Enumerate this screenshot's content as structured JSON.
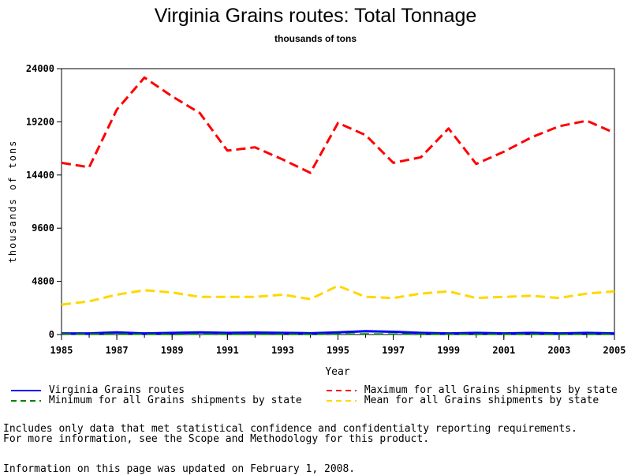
{
  "chart_data": {
    "type": "line",
    "title": "Virginia Grains routes: Total Tonnage",
    "subtitle": "thousands of tons",
    "xlabel": "Year",
    "ylabel": "thousands of tons",
    "x": [
      1985,
      1986,
      1987,
      1988,
      1989,
      1990,
      1991,
      1992,
      1993,
      1994,
      1995,
      1996,
      1997,
      1998,
      1999,
      2000,
      2001,
      2002,
      2003,
      2004,
      2005
    ],
    "xticks": [
      "1985",
      "1987",
      "1989",
      "1991",
      "1993",
      "1995",
      "1997",
      "1999",
      "2001",
      "2003",
      "2005"
    ],
    "yticks": [
      "0",
      "4800",
      "9600",
      "14400",
      "19200",
      "24000"
    ],
    "ylim": [
      0,
      24000
    ],
    "xlim": [
      1985,
      2005
    ],
    "grid": false,
    "series": [
      {
        "name": "Virginia Grains routes",
        "color": "#0000ff",
        "dash": "solid",
        "values": [
          100,
          100,
          200,
          100,
          150,
          200,
          150,
          180,
          150,
          120,
          200,
          300,
          250,
          150,
          100,
          150,
          100,
          150,
          100,
          150,
          100
        ]
      },
      {
        "name": "Maximum for all Grains shipments by state",
        "color": "#ff0000",
        "dash": "dashed",
        "values": [
          15500,
          15100,
          20300,
          23200,
          21500,
          20000,
          16600,
          16900,
          15800,
          14600,
          19100,
          18000,
          15500,
          16000,
          18600,
          15400,
          16500,
          17800,
          18800,
          19300,
          18200
        ]
      },
      {
        "name": "Minimum for all Grains shipments by state",
        "color": "#008000",
        "dash": "dashed",
        "values": [
          50,
          40,
          50,
          30,
          20,
          40,
          30,
          30,
          30,
          20,
          40,
          50,
          40,
          30,
          30,
          20,
          30,
          30,
          20,
          30,
          30
        ]
      },
      {
        "name": "Mean for all Grains shipments by state",
        "color": "#ffd700",
        "dash": "dashed",
        "values": [
          2700,
          3000,
          3600,
          4000,
          3800,
          3400,
          3400,
          3400,
          3600,
          3200,
          4400,
          3400,
          3300,
          3700,
          3900,
          3300,
          3400,
          3500,
          3300,
          3700,
          3900
        ]
      }
    ]
  },
  "notes": {
    "line1": "Includes only data that met statistical confidence and confidentialty reporting requirements.",
    "line2": "For more information, see the Scope and Methodology for this product.",
    "line3": "Information on this page was updated on February 1, 2008."
  }
}
